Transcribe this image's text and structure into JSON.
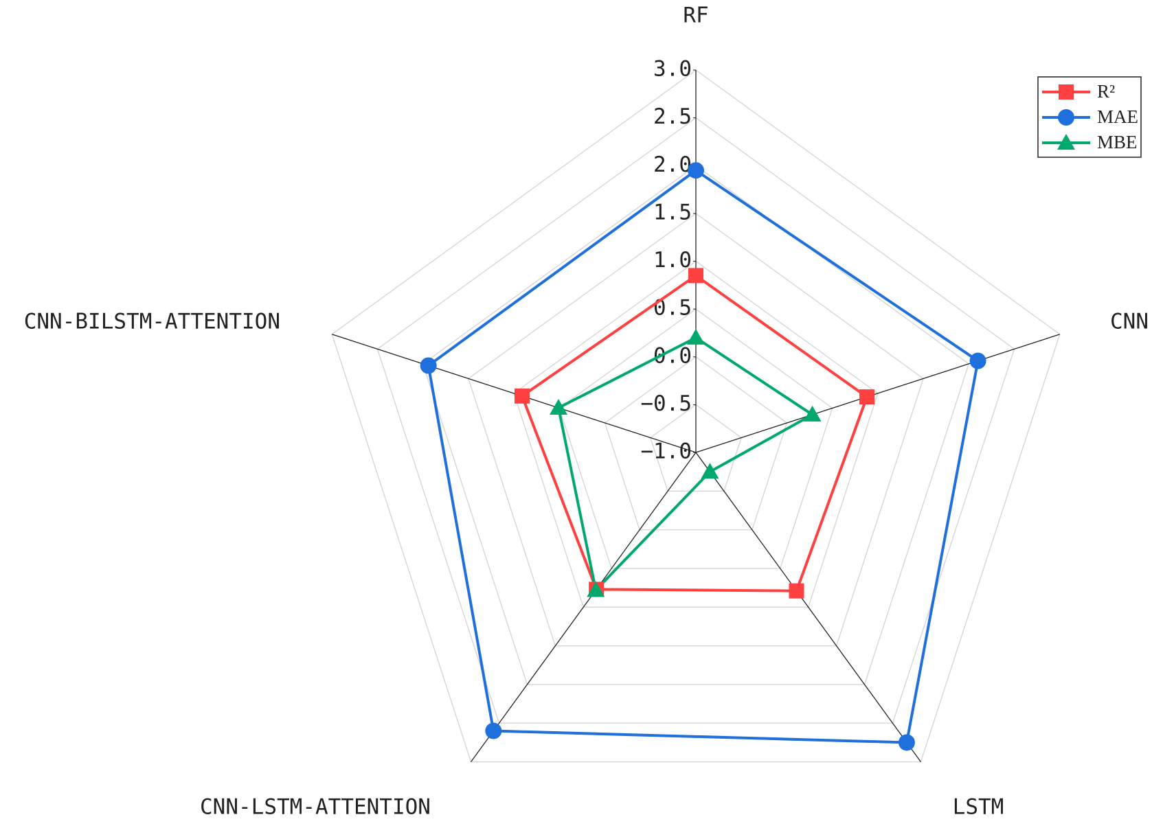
{
  "chart_data": {
    "type": "radar",
    "categories": [
      "RF",
      "CNN",
      "LSTM",
      "CNN-LSTM-ATTENTION",
      "CNN-BILSTM-ATTENTION"
    ],
    "series": [
      {
        "name": "R²",
        "color": "#ff4040",
        "marker": "square",
        "values": [
          0.85,
          0.88,
          0.79,
          0.77,
          0.91
        ]
      },
      {
        "name": "MAE",
        "color": "#1f6fdc",
        "marker": "circle",
        "values": [
          1.95,
          2.1,
          2.75,
          2.6,
          1.94
        ]
      },
      {
        "name": "MBE",
        "color": "#00a86b",
        "marker": "triangle",
        "values": [
          0.2,
          0.28,
          -0.75,
          0.78,
          0.51
        ]
      }
    ],
    "ylim": [
      -1,
      3
    ],
    "yticks": [
      {
        "value": -1,
        "label": "−1.0"
      },
      {
        "value": -0.5,
        "label": "−0.5"
      },
      {
        "value": 0,
        "label": "0.0"
      },
      0.5,
      {
        "value": 1,
        "label": "1.0"
      },
      1.5,
      {
        "value": 2,
        "label": "2.0"
      },
      2.5,
      {
        "value": 3,
        "label": "3.0"
      }
    ],
    "grid": true,
    "legend": "upper right"
  }
}
